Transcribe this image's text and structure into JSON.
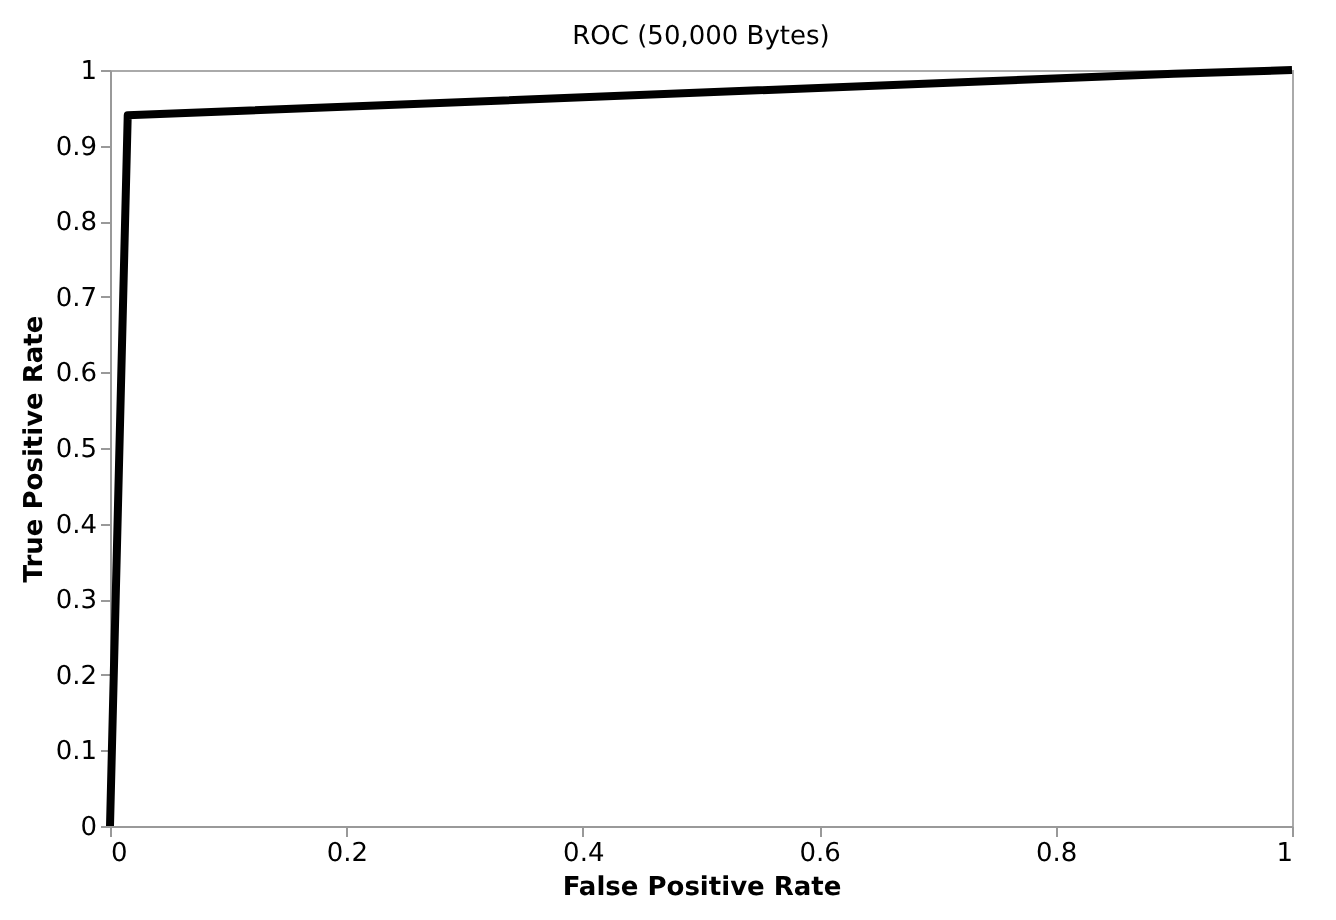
{
  "chart_data": {
    "type": "line",
    "title": "ROC (50,000 Bytes)",
    "xlabel": "False Positive Rate",
    "ylabel": "True Positive Rate",
    "x": [
      0,
      0.015,
      0.9,
      1
    ],
    "series": [
      {
        "color": "#000000",
        "values": [
          0,
          0.94,
          0.995,
          1
        ]
      }
    ],
    "xlim": [
      0,
      1
    ],
    "xticks": [
      0,
      0.2,
      0.4,
      0.6,
      0.8,
      1
    ],
    "ylim": [
      0,
      1
    ],
    "yticks": [
      0,
      0.1,
      0.2,
      0.3,
      0.4,
      0.5,
      0.6,
      0.7,
      0.8,
      0.9,
      1
    ],
    "grid": false,
    "marker": "none",
    "line_style": "solid"
  }
}
